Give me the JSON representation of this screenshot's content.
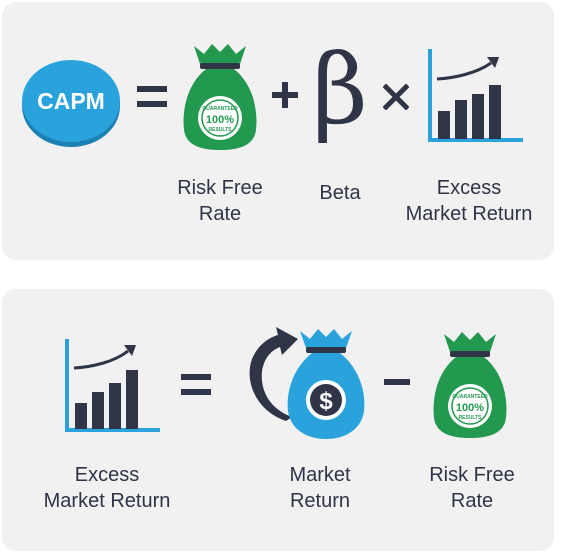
{
  "equation1": {
    "capm_label": "CAPM",
    "risk_free_label": [
      "Risk Free",
      "Rate"
    ],
    "beta_label": "Beta",
    "beta_symbol": "β",
    "excess_label": [
      "Excess",
      "Market Return"
    ]
  },
  "equation2": {
    "excess_label": [
      "Excess",
      "Market Return"
    ],
    "market_label": [
      "Market",
      "Return"
    ],
    "risk_free_label": [
      "Risk Free",
      "Rate"
    ]
  },
  "seal_text": {
    "top": "GUARANTEED",
    "middle": "100%",
    "bottom": "RESULTS"
  },
  "colors": {
    "panel": "#f1f1f1",
    "navy": "#2f3447",
    "green": "#23994f",
    "blue": "#2aa3dc",
    "blue_dark": "#1c80b5"
  }
}
